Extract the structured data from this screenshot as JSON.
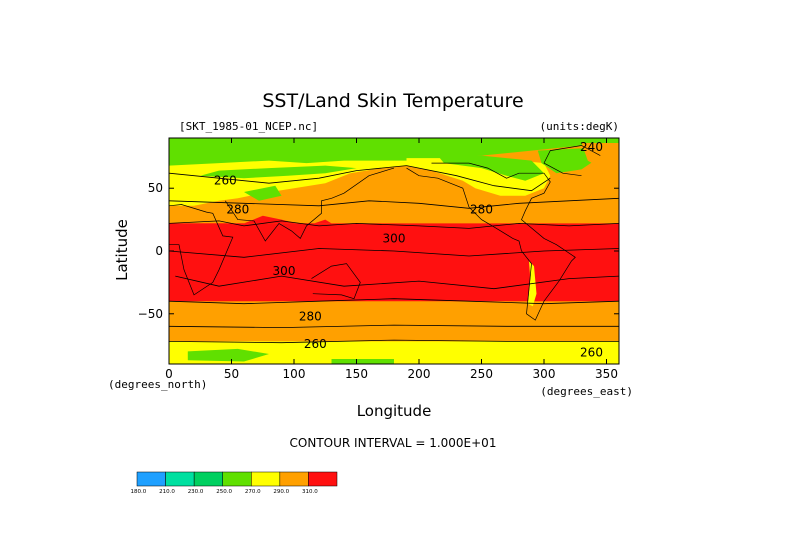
{
  "chart_data": {
    "type": "heatmap",
    "title": "SST/Land Skin Temperature",
    "subtitle_left": "[SKT_1985-01_NCEP.nc]",
    "subtitle_right": "(units:degK)",
    "xlabel": "Longitude",
    "ylabel": "Latitude",
    "xunit_label": "(degrees_east)",
    "yunit_label": "(degrees_north)",
    "xlim": [
      0,
      360
    ],
    "ylim": [
      -90,
      90
    ],
    "x_ticks": [
      0,
      50,
      100,
      150,
      200,
      250,
      300,
      350
    ],
    "x_tick_labels": [
      "0",
      "50",
      "100",
      "150",
      "200",
      "250",
      "300",
      "350"
    ],
    "y_ticks": [
      50,
      0,
      -50
    ],
    "y_tick_labels": [
      "50",
      "0",
      "−50"
    ],
    "contour_interval_text": "CONTOUR INTERVAL = 1.000E+01",
    "contour_labels": [
      {
        "text": "260",
        "lon": 45,
        "lat": 56
      },
      {
        "text": "280",
        "lon": 55,
        "lat": 33
      },
      {
        "text": "300",
        "lon": 180,
        "lat": 10
      },
      {
        "text": "300",
        "lon": 92,
        "lat": -16
      },
      {
        "text": "280",
        "lon": 113,
        "lat": -52
      },
      {
        "text": "260",
        "lon": 117,
        "lat": -74
      },
      {
        "text": "280",
        "lon": 250,
        "lat": 33
      },
      {
        "text": "240",
        "lon": 338,
        "lat": 83
      },
      {
        "text": "260",
        "lon": 338,
        "lat": -81
      }
    ],
    "bands": [
      {
        "range": "above 300 K",
        "lat_from": 22,
        "lat_to": -40
      },
      {
        "range": "280–300 K",
        "lat_from": 40,
        "lat_to": 22
      },
      {
        "range": "280–300 K",
        "lat_from": -40,
        "lat_to": -60
      },
      {
        "range": "270–280 K",
        "lat_from": -60,
        "lat_to": -72
      },
      {
        "range": "260–270 K",
        "lat_from": -72,
        "lat_to": -90
      },
      {
        "range": "250–260 K",
        "lat_from": 90,
        "lat_to": 60
      }
    ],
    "colorbar": {
      "levels": [
        "180.0",
        "210.0",
        "230.0",
        "250.0",
        "270.0",
        "290.0",
        "310.0"
      ],
      "colors": [
        "#1fa0ff",
        "#00e0a0",
        "#00d060",
        "#60e000",
        "#ffff00",
        "#ffa000",
        "#ff1010"
      ]
    },
    "palette": {
      "red": "#ff1010",
      "orange": "#ffa000",
      "yellow": "#ffff00",
      "green": "#60e000",
      "lightgreen": "#00d060",
      "teal": "#00e0a0",
      "blue": "#1fa0ff"
    }
  }
}
